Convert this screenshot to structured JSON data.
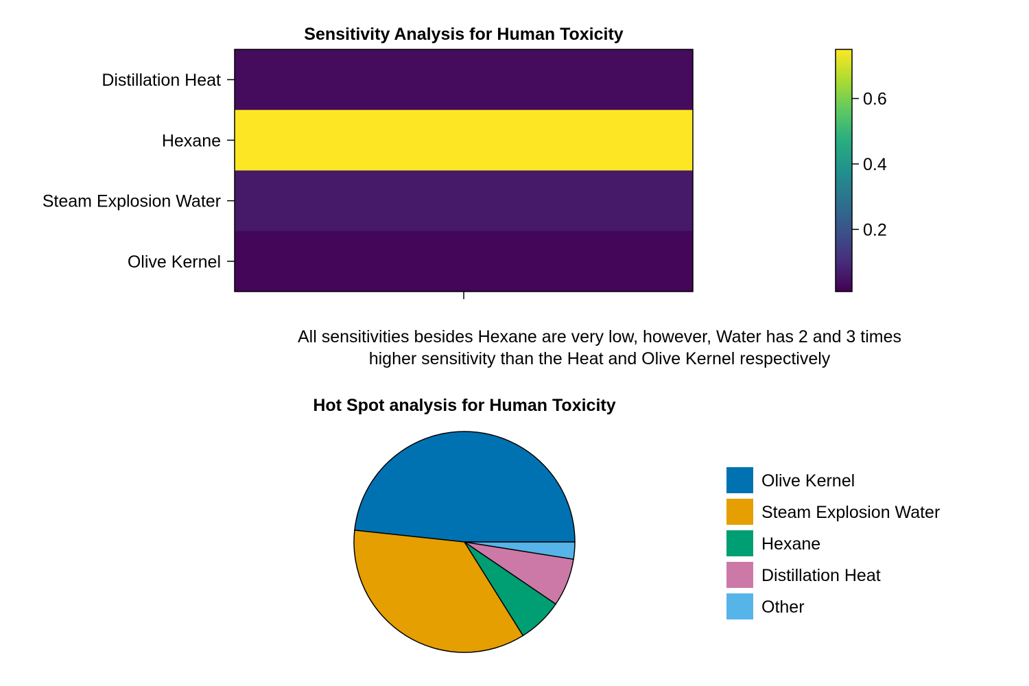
{
  "chart_data": [
    {
      "type": "heatmap",
      "title": "Sensitivity Analysis for Human Toxicity",
      "rows": [
        "Distillation Heat",
        "Hexane",
        "Steam Explosion Water",
        "Olive Kernel"
      ],
      "values": [
        0.03,
        0.75,
        0.06,
        0.02
      ],
      "colorbar": {
        "range": [
          0.01,
          0.75
        ],
        "ticks": [
          0.2,
          0.4,
          0.6
        ],
        "tick_labels": [
          "0.2",
          "0.4",
          "0.6"
        ],
        "colormap": "viridis"
      }
    },
    {
      "type": "pie",
      "title": "Hot Spot analysis for Human Toxicity",
      "labels": [
        "Olive Kernel",
        "Steam Explosion Water",
        "Hexane",
        "Distillation Heat",
        "Other"
      ],
      "values": [
        48.3,
        35.6,
        6.6,
        7.0,
        2.5
      ],
      "colors": [
        "#0072b2",
        "#e69f00",
        "#009e73",
        "#cc79a7",
        "#56b4e9"
      ],
      "legend_position": "right"
    }
  ],
  "annotation": {
    "line1": "All sensitivities besides Hexane are very low, however, Water has 2 and 3 times",
    "line2": "higher sensitivity than the Heat and Olive Kernel respectively"
  }
}
